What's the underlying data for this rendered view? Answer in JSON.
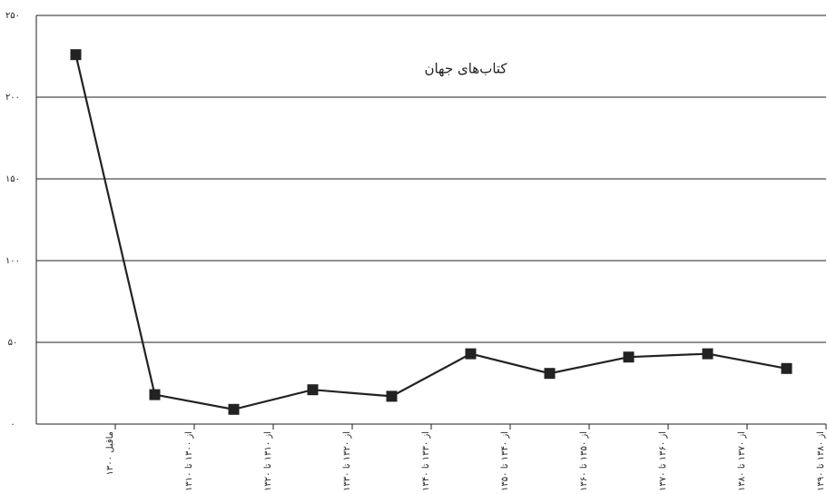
{
  "chart_data": {
    "type": "line",
    "title": "کتاب‌های جهان",
    "categories": [
      "ماقبل ۱۳۰۰",
      "از ۱۳۰۰ تا ۱۳۱۰",
      "از ۱۳۱۰ تا ۱۳۲۰",
      "از ۱۳۲۰ تا ۱۳۳۰",
      "از ۱۳۳۰ تا ۱۳۴۰",
      "از ۱۳۴۰ تا ۱۳۵۰",
      "از ۱۳۵۰ تا ۱۳۶۰",
      "از ۱۳۶۰ تا ۱۳۷۰",
      "از ۱۳۷۰ تا ۱۳۸۰",
      "از ۱۳۸۰ تا ۱۳۹۰"
    ],
    "series": [
      {
        "name": "کتاب‌های جهان",
        "color": "#222222",
        "values": [
          226,
          18,
          9,
          21,
          17,
          43,
          31,
          41,
          43,
          34
        ]
      }
    ],
    "ylim": [
      0,
      250
    ],
    "yticks": [
      {
        "value": 0,
        "label": "۰"
      },
      {
        "value": 50,
        "label": "۵۰"
      },
      {
        "value": 100,
        "label": "۱۰۰"
      },
      {
        "value": 150,
        "label": "۱۵۰"
      },
      {
        "value": 200,
        "label": "۲۰۰"
      },
      {
        "value": 250,
        "label": "۲۵۰"
      }
    ],
    "grid": true
  }
}
